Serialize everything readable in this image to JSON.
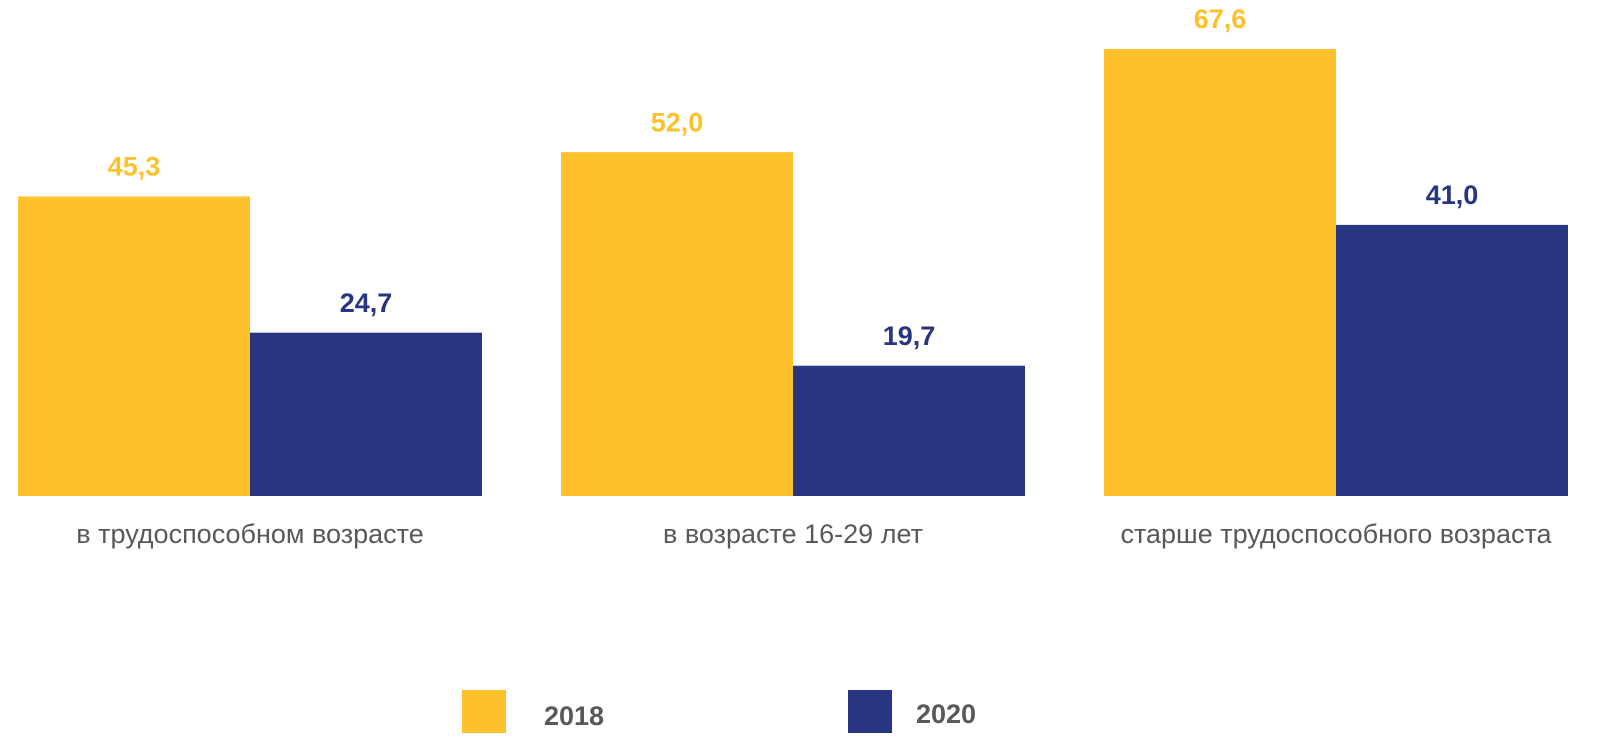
{
  "chart_data": {
    "type": "bar",
    "categories": [
      "в трудоспособном возрасте",
      "в возрасте 16-29 лет",
      "старше трудоспособного возраста"
    ],
    "series": [
      {
        "name": "2018",
        "color": "#fdc12c",
        "values": [
          45.3,
          52.0,
          67.6
        ],
        "value_labels": [
          "45,3",
          "52,0",
          "67,6"
        ]
      },
      {
        "name": "2020",
        "color": "#283583",
        "values": [
          24.7,
          19.7,
          41.0
        ],
        "value_labels": [
          "24,7",
          "19,7",
          "41,0"
        ]
      }
    ]
  }
}
